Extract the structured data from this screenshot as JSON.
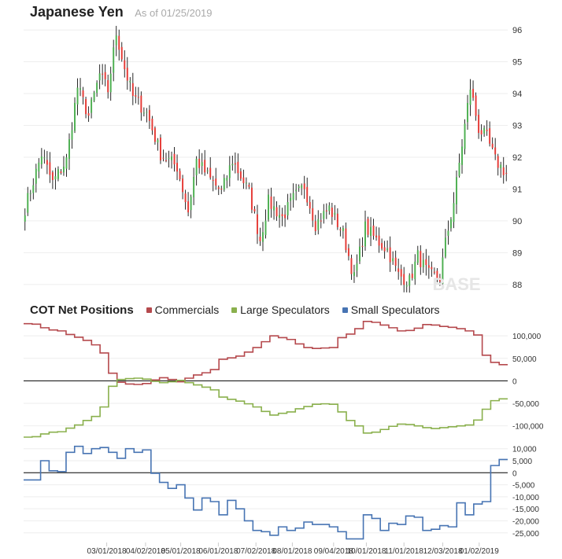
{
  "header": {
    "title": "Japanese Yen",
    "as_of": "As of 01/25/2019"
  },
  "watermark": "BASE",
  "chart_data": [
    {
      "type": "candlestick",
      "title": "Japanese Yen",
      "subtitle": "As of 01/25/2019",
      "ylim": [
        87.6,
        96.2
      ],
      "yticks": [
        88,
        89,
        90,
        91,
        92,
        93,
        94,
        95,
        96
      ],
      "colors": {
        "up": "#4caf50",
        "down": "#e53935",
        "wick": "#111111"
      },
      "anchors": [
        [
          0,
          90.4
        ],
        [
          6,
          92.1
        ],
        [
          10,
          91.2
        ],
        [
          15,
          91.9
        ],
        [
          19,
          94.2
        ],
        [
          23,
          93.3
        ],
        [
          27,
          94.6
        ],
        [
          30,
          94.1
        ],
        [
          33,
          95.9
        ],
        [
          36,
          94.8
        ],
        [
          39,
          93.9
        ],
        [
          44,
          93.4
        ],
        [
          49,
          92.1
        ],
        [
          55,
          91.7
        ],
        [
          59,
          90.3
        ],
        [
          62,
          91.9
        ],
        [
          67,
          91.3
        ],
        [
          71,
          90.9
        ],
        [
          75,
          91.9
        ],
        [
          81,
          90.9
        ],
        [
          85,
          89.4
        ],
        [
          88,
          90.6
        ],
        [
          93,
          90.1
        ],
        [
          97,
          90.7
        ],
        [
          101,
          91.1
        ],
        [
          105,
          89.9
        ],
        [
          110,
          90.4
        ],
        [
          115,
          89.6
        ],
        [
          119,
          88.2
        ],
        [
          123,
          89.8
        ],
        [
          127,
          89.4
        ],
        [
          131,
          89.1
        ],
        [
          135,
          88.3
        ],
        [
          139,
          88.1
        ],
        [
          142,
          88.9
        ],
        [
          146,
          88.3
        ],
        [
          150,
          88.2
        ],
        [
          152,
          89.3
        ],
        [
          155,
          90.6
        ],
        [
          158,
          92.4
        ],
        [
          161,
          94.2
        ],
        [
          164,
          92.9
        ],
        [
          167,
          92.6
        ],
        [
          170,
          91.9
        ],
        [
          174,
          91.5
        ]
      ]
    },
    {
      "type": "line",
      "title": "COT Net Positions",
      "ylim": [
        -132000,
        130000
      ],
      "yticks": [
        100000,
        50000,
        0,
        -50000,
        -100000
      ],
      "tick_labels": [
        "100,000",
        "50,000",
        "0",
        "-50,000",
        "-100,000"
      ],
      "x": [
        "12/26/2017",
        "01/02/2018",
        "01/09/2018",
        "01/16/2018",
        "01/23/2018",
        "01/30/2018",
        "02/06/2018",
        "02/13/2018",
        "02/20/2018",
        "02/27/2018",
        "03/06/2018",
        "03/13/2018",
        "03/20/2018",
        "03/27/2018",
        "04/03/2018",
        "04/10/2018",
        "04/17/2018",
        "04/24/2018",
        "05/01/2018",
        "05/08/2018",
        "05/15/2018",
        "05/22/2018",
        "05/29/2018",
        "06/05/2018",
        "06/12/2018",
        "06/19/2018",
        "06/26/2018",
        "07/03/2018",
        "07/10/2018",
        "07/17/2018",
        "07/24/2018",
        "07/31/2018",
        "08/07/2018",
        "08/14/2018",
        "08/21/2018",
        "08/28/2018",
        "09/04/2018",
        "09/11/2018",
        "09/18/2018",
        "09/25/2018",
        "10/02/2018",
        "10/09/2018",
        "10/16/2018",
        "10/23/2018",
        "10/30/2018",
        "11/06/2018",
        "11/13/2018",
        "11/20/2018",
        "11/27/2018",
        "12/04/2018",
        "12/11/2018",
        "12/18/2018",
        "12/25/2018",
        "01/01/2019",
        "01/08/2019",
        "01/15/2019",
        "01/22/2019"
      ],
      "series": [
        {
          "name": "Commercials",
          "color": "#b5494d",
          "values": [
            127000,
            126000,
            118000,
            113000,
            111000,
            103000,
            97000,
            90000,
            80000,
            62000,
            17000,
            -3000,
            -7000,
            -8000,
            -6000,
            2000,
            7000,
            3000,
            -2000,
            6000,
            13000,
            18000,
            25000,
            48000,
            51000,
            55000,
            64000,
            74000,
            87000,
            100000,
            96000,
            92000,
            82000,
            74000,
            72000,
            73000,
            74000,
            96000,
            104000,
            116000,
            132000,
            130000,
            124000,
            118000,
            111000,
            112000,
            117000,
            125000,
            124000,
            121000,
            119000,
            116000,
            111000,
            102000,
            57000,
            41000,
            36000
          ]
        },
        {
          "name": "Large Speculators",
          "color": "#8ab04d",
          "values": [
            -125000,
            -124000,
            -118000,
            -114000,
            -113000,
            -105000,
            -98000,
            -88000,
            -79000,
            -58000,
            -12000,
            3000,
            5000,
            6000,
            4000,
            -1000,
            -4000,
            -2000,
            1000,
            -4000,
            -9000,
            -14000,
            -20000,
            -36000,
            -41000,
            -45000,
            -51000,
            -58000,
            -68000,
            -76000,
            -72000,
            -69000,
            -62000,
            -57000,
            -52000,
            -51000,
            -52000,
            -69000,
            -88000,
            -100000,
            -116000,
            -114000,
            -108000,
            -101000,
            -96000,
            -97000,
            -100000,
            -104000,
            -106000,
            -104000,
            -102000,
            -100000,
            -98000,
            -87000,
            -63000,
            -44000,
            -40000
          ]
        }
      ]
    },
    {
      "type": "line",
      "ylim": [
        -29000,
        13500
      ],
      "yticks": [
        10000,
        5000,
        0,
        -5000,
        -10000,
        -15000,
        -20000,
        -25000
      ],
      "tick_labels": [
        "10,000",
        "5,000",
        "0",
        "-5,000",
        "-10,000",
        "-15,000",
        "-20,000",
        "-25,000"
      ],
      "x_tick_labels": [
        "03/01/2018",
        "04/02/2018",
        "05/01/2018",
        "06/01/2018",
        "07/02/2018",
        "08/01/2018",
        "09/04/2018",
        "10/01/2018",
        "11/01/2018",
        "12/03/2018",
        "01/02/2019"
      ],
      "series": [
        {
          "name": "Small Speculators",
          "color": "#4774b3",
          "values": [
            -3000,
            -3000,
            5000,
            800,
            500,
            8500,
            11000,
            8000,
            10000,
            10500,
            8500,
            6000,
            10000,
            8500,
            9500,
            -200,
            -4000,
            -6500,
            -5000,
            -10500,
            -15500,
            -10500,
            -12000,
            -17500,
            -11500,
            -15000,
            -20000,
            -24000,
            -24500,
            -26000,
            -22500,
            -24000,
            -23000,
            -20500,
            -21500,
            -21500,
            -22500,
            -24500,
            -27500,
            -27500,
            -17500,
            -19000,
            -24000,
            -21000,
            -21500,
            -18000,
            -18500,
            -24000,
            -23500,
            -22000,
            -22500,
            -12500,
            -17500,
            -13000,
            -12000,
            3000,
            5500
          ]
        }
      ]
    }
  ]
}
